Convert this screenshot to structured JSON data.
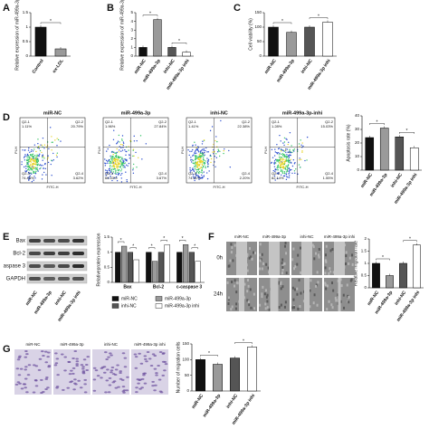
{
  "panel_labels": [
    "A",
    "B",
    "C",
    "D",
    "E",
    "F",
    "G"
  ],
  "chart_data": [
    {
      "type": "bar",
      "ylabel": "Relative expression of miR-499a-3p",
      "categories": [
        "Control",
        "ox-LDL"
      ],
      "values": [
        1.0,
        0.25
      ],
      "colors": [
        "#111111",
        "#9a9a9a"
      ],
      "ylim": [
        0,
        1.5
      ],
      "yticks": [
        0,
        0.5,
        1,
        1.5
      ],
      "annotations": [
        "*"
      ]
    },
    {
      "type": "bar",
      "ylabel": "Relative expression of miR-499a-3p",
      "categories": [
        "miR-NC",
        "miR-499a-3p",
        "inhi-NC",
        "miR-499a-3p inhi"
      ],
      "values": [
        1.0,
        4.2,
        1.0,
        0.45
      ],
      "colors": [
        "#111111",
        "#9a9a9a",
        "#555555",
        "#ffffff"
      ],
      "ylim": [
        0,
        5
      ],
      "yticks": [
        0,
        1,
        2,
        3,
        4,
        5
      ],
      "annotations": [
        "*",
        "*"
      ]
    },
    {
      "type": "bar",
      "ylabel": "Cell viability (%)",
      "categories": [
        "miR-NC",
        "miR-499a-3p",
        "inhi-NC",
        "miR-499a-3p inhi"
      ],
      "values": [
        100,
        82,
        100,
        117
      ],
      "colors": [
        "#111111",
        "#9a9a9a",
        "#555555",
        "#ffffff"
      ],
      "ylim": [
        0,
        150
      ],
      "yticks": [
        0,
        50,
        100,
        150
      ],
      "annotations": [
        "*",
        "*"
      ]
    },
    {
      "type": "bar",
      "ylabel": "Apoptosis rate (%)",
      "categories": [
        "miR-NC",
        "miR-499a-3p",
        "inhi-NC",
        "miR-499a-3p inhi"
      ],
      "values": [
        24,
        31,
        24.5,
        16.5
      ],
      "colors": [
        "#111111",
        "#9a9a9a",
        "#555555",
        "#ffffff"
      ],
      "ylim": [
        0,
        40
      ],
      "yticks": [
        0,
        10,
        20,
        30,
        40
      ],
      "annotations": [
        "*",
        "*"
      ]
    },
    {
      "type": "grouped-bar",
      "ylabel": "Relativeprotein expression",
      "categories": [
        "Bax",
        "Bcl-2",
        "c-caspase 3"
      ],
      "series": [
        {
          "name": "miR-NC",
          "color": "#111111",
          "values": [
            1.0,
            1.0,
            1.0
          ]
        },
        {
          "name": "miR-499a-3p",
          "color": "#9a9a9a",
          "values": [
            1.2,
            0.7,
            1.25
          ]
        },
        {
          "name": "inhi-NC",
          "color": "#555555",
          "values": [
            1.0,
            1.0,
            1.0
          ]
        },
        {
          "name": "miR-499a-3p inhi",
          "color": "#ffffff",
          "values": [
            0.75,
            1.25,
            0.7
          ]
        }
      ],
      "ylim": [
        0,
        1.5
      ],
      "yticks": [
        0,
        0.5,
        1,
        1.5
      ],
      "annotations": [
        "*",
        "*",
        "*",
        "*",
        "*",
        "*"
      ]
    },
    {
      "type": "bar",
      "ylabel": "Relative migration rate",
      "categories": [
        "miR-NC",
        "miR-499a-3p",
        "inhi-NC",
        "miR-499a-3p inhi"
      ],
      "values": [
        1.0,
        0.5,
        1.0,
        1.75
      ],
      "colors": [
        "#111111",
        "#9a9a9a",
        "#555555",
        "#ffffff"
      ],
      "ylim": [
        0,
        2
      ],
      "yticks": [
        0,
        0.5,
        1,
        1.5,
        2
      ],
      "annotations": [
        "*",
        "*"
      ]
    },
    {
      "type": "bar",
      "ylabel": "Number of migration cells",
      "categories": [
        "miR-NC",
        "miR-499a-3p",
        "inhi-NC",
        "miR-499a-3p inhi"
      ],
      "values": [
        100,
        85,
        105,
        140
      ],
      "colors": [
        "#111111",
        "#9a9a9a",
        "#555555",
        "#ffffff"
      ],
      "ylim": [
        0,
        150
      ],
      "yticks": [
        0,
        50,
        100,
        150
      ],
      "annotations": [
        "*",
        "*"
      ]
    }
  ],
  "flow": {
    "x_label": "FITC-H",
    "y_label": "PI-H",
    "plots": [
      {
        "title": "miR-NC",
        "quadrants": [
          "Q2-1",
          "Q2-2",
          "Q2-3",
          "Q2-4"
        ],
        "percents": [
          "1.11%",
          "20.79%",
          "74.48%",
          "3.62%"
        ]
      },
      {
        "title": "miR-499a-3p",
        "quadrants": [
          "Q2-1",
          "Q2-2",
          "Q2-3",
          "Q2-4"
        ],
        "percents": [
          "1.96%",
          "27.84%",
          "66.53%",
          "3.67%"
        ]
      },
      {
        "title": "inhi-NC",
        "quadrants": [
          "Q2-1",
          "Q2-2",
          "Q2-3",
          "Q2-4"
        ],
        "percents": [
          "1.41%",
          "22.38%",
          "74.01%",
          "2.20%"
        ]
      },
      {
        "title": "miR-499a-3p-inhi",
        "quadrants": [
          "Q2-1",
          "Q2-2",
          "Q2-3",
          "Q2-4"
        ],
        "percents": [
          "1.28%",
          "15.03%",
          "82.14%",
          "1.55%"
        ]
      }
    ]
  },
  "blot": {
    "bands": [
      "Bax",
      "Bcl-2",
      "aspase 3",
      "GAPDH"
    ],
    "lanes": [
      "miR-NC",
      "miR-499a-3p",
      "inhi-NC",
      "miR-499a-3p inhi"
    ]
  },
  "scratch": {
    "rows": [
      "0h",
      "24h"
    ],
    "lanes": [
      "miR-NC",
      "miR-499a-3p",
      "inhi-NC",
      "miR-499a-3p inhi"
    ]
  },
  "transwell": {
    "lanes": [
      "miR-NC",
      "miR-499a-3p",
      "inhi-NC",
      "miR-499a-3p inhi"
    ]
  }
}
